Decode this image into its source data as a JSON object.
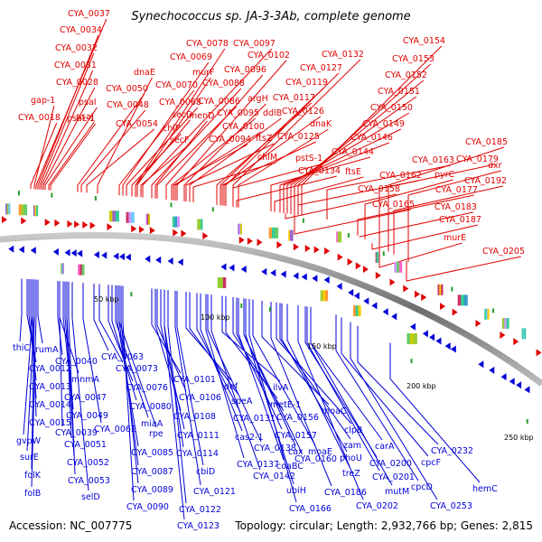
{
  "title": "Synechococcus sp. JA-3-3Ab, complete genome",
  "footer": {
    "accession": "Accession: NC_007775",
    "stats": "Topology: circular; Length: 2,932,766 bp; Genes: 2,815"
  },
  "colors": {
    "forward": "#e00000",
    "reverse": "#0000d8",
    "backbone": "#808080"
  },
  "scale_labels": [
    "50 kbp",
    "100 kbp",
    "150 kbp",
    "200 kbp",
    "250 kbp"
  ],
  "labels_top": [
    "CYA_0037",
    "CYA_0034",
    "CYA_0032",
    "CYA_0031",
    "CYA_0028",
    "psaI",
    "gap-1",
    "psaJ",
    "psaL-1",
    "CYA_0018",
    "CYA_0050",
    "CYA_0048",
    "CYA_0054",
    "dnaE",
    "CYA_0078",
    "CYA_0097",
    "CYA_0069",
    "murF",
    "CYA_0070",
    "CYA_0068",
    "secD",
    "chlP",
    "secF",
    "CYA_0088",
    "CYA_0086",
    "menD",
    "CYA_0102",
    "CYA_0096",
    "argH",
    "CYA_0095",
    "ddlB",
    "CYA_0100",
    "CYA_0094",
    "ftsZ",
    "chlM",
    "CYA_0132",
    "CYA_0127",
    "CYA_0119",
    "CYA_0117",
    "CYA_0126",
    "dnaK",
    "CYA_0125",
    "pstS-1",
    "CYA_0134",
    "CYA_0154",
    "CYA_0153",
    "CYA_0152",
    "CYA_0151",
    "CYA_0150",
    "CYA_0149",
    "CYA_0146",
    "CYA_0144",
    "ftsE",
    "CYA_0162",
    "CYA_0158",
    "CYA_0165",
    "CYA_0163",
    "CYA_0185",
    "CYA_0179",
    "pyrC",
    "dxr",
    "CYA_0177",
    "CYA_0192",
    "CYA_0183",
    "CYA_0187",
    "murE",
    "CYA_0205"
  ],
  "labels_bottom": [
    "thiC",
    "rumA",
    "CYA_0012",
    "CYA_0013",
    "CYA_0014",
    "CYA_0015",
    "gvpW",
    "surE",
    "folK",
    "folB",
    "CYA_0040",
    "mnmA",
    "CYA_0047",
    "CYA_0039",
    "CYA_0049",
    "CYA_0051",
    "CYA_0052",
    "CYA_0053",
    "selD",
    "CYA_0063",
    "CYA_0073",
    "CYA_0062",
    "CYA_0076",
    "CYA_0080",
    "miaA",
    "rpe",
    "CYA_0085",
    "CYA_0087",
    "CYA_0089",
    "CYA_0090",
    "CYA_0101",
    "CYA_0106",
    "CYA_0108",
    "CYA_0111",
    "CYA_0114",
    "cbiD",
    "CYA_0121",
    "CYA_0122",
    "CYA_0123",
    "def",
    "speA",
    "CYA_0131",
    "cas2-1",
    "CYA_0138",
    "CYA_0137",
    "CYA_0142",
    "ilvA",
    "metE-1",
    "CYA_0156",
    "CYA_0157",
    "cax",
    "moaE",
    "coaBC",
    "ubiH",
    "CYA_0160",
    "CYA_0166",
    "moaC",
    "clpB",
    "zam",
    "phoU",
    "treZ",
    "CYA_0186",
    "carA",
    "CYA_0200",
    "CYA_0201",
    "mutM",
    "CYA_0202",
    "cpcF",
    "cpcD",
    "CYA_0232",
    "hemC",
    "CYA_0253"
  ]
}
